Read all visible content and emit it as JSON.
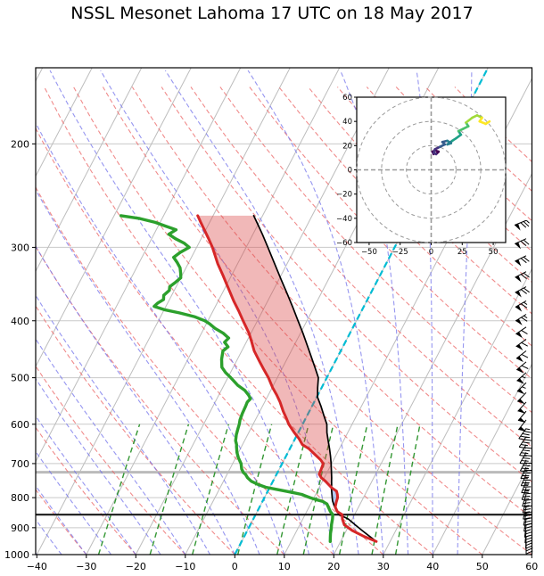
{
  "figure_title": "NSSL Mesonet Lahoma 17 UTC on 18 May 2017",
  "colors": {
    "temperature": "#d62728",
    "dewpoint": "#2ca02c",
    "parcel": "#000000",
    "cape_fill": "rgba(219,68,68,0.38)",
    "cin_fill": "rgba(120,160,235,0.55)",
    "isotherm": "#bdbdbd",
    "pressure_grid": "#c9c9c9",
    "dry_adiabat": "rgba(235,100,100,0.75)",
    "moist_adiabat": "rgba(115,115,235,0.75)",
    "mixing_ratio": "rgba(40,145,40,0.95)",
    "freezing_line": "#00bcd4",
    "lcl_line": "#1a1a1a",
    "aux_line": "#bbbbbb",
    "barb": "#000000",
    "hodo_grid": "#999999"
  },
  "chart_data": {
    "type": "skewt-log-p",
    "title": "NSSL Mesonet Lahoma 17 UTC on 18 May 2017",
    "x_tick_labels": [
      "−40",
      "−30",
      "−20",
      "−10",
      "0",
      "10",
      "20",
      "30",
      "40",
      "50",
      "60"
    ],
    "x_tick_values": [
      -40,
      -30,
      -20,
      -10,
      0,
      10,
      20,
      30,
      40,
      50,
      60
    ],
    "y_tick_labels": [
      "200",
      "300",
      "400",
      "500",
      "600",
      "700",
      "800",
      "900",
      "1000"
    ],
    "y_tick_values": [
      200,
      300,
      400,
      500,
      600,
      700,
      800,
      900,
      1000
    ],
    "pressure_limits_hpa": [
      1000,
      150
    ],
    "temperature_limits_c": [
      -40,
      60
    ],
    "lcl_pressure_hpa": 855,
    "aux_level_pressure_hpa": 724,
    "lfc_pressure_hpa": 768,
    "freezing_highlight_c": 0,
    "background": {
      "isotherm_step_c": 10,
      "dry_adiabat_thetas_c": [
        -30,
        -20,
        -10,
        0,
        10,
        20,
        30,
        40,
        50,
        60,
        70,
        80,
        90,
        100,
        110,
        120,
        130,
        140,
        150,
        160,
        170,
        180
      ],
      "moist_adiabat_starts_c": [
        -40,
        -35,
        -30,
        -25,
        -20,
        -15,
        -10,
        -5,
        0,
        5,
        10,
        15,
        20,
        25,
        30,
        35,
        40,
        45
      ],
      "mixing_ratios_g_kg": [
        0.4,
        1,
        2,
        4,
        7,
        10,
        16,
        24,
        32
      ],
      "mixing_ratio_max_pressure_hpa": 600
    },
    "temperature_profile": {
      "points": [
        [
          950,
          27.2
        ],
        [
          930,
          24.0
        ],
        [
          910,
          21.2
        ],
        [
          890,
          19.0
        ],
        [
          870,
          18.0
        ],
        [
          855,
          17.5
        ],
        [
          845,
          16.2
        ],
        [
          830,
          15.3
        ],
        [
          815,
          15.0
        ],
        [
          800,
          14.8
        ],
        [
          790,
          14.4
        ],
        [
          780,
          13.9
        ],
        [
          770,
          12.6
        ],
        [
          760,
          11.6
        ],
        [
          750,
          10.6
        ],
        [
          740,
          9.4
        ],
        [
          730,
          8.6
        ],
        [
          718,
          8.5
        ],
        [
          708,
          8.4
        ],
        [
          700,
          8.3
        ],
        [
          690,
          7.4
        ],
        [
          675,
          5.6
        ],
        [
          660,
          3.8
        ],
        [
          650,
          2.1
        ],
        [
          635,
          0.8
        ],
        [
          620,
          -0.8
        ],
        [
          600,
          -2.8
        ],
        [
          585,
          -4.0
        ],
        [
          570,
          -5.3
        ],
        [
          550,
          -6.9
        ],
        [
          535,
          -8.3
        ],
        [
          520,
          -9.9
        ],
        [
          500,
          -11.8
        ],
        [
          485,
          -13.5
        ],
        [
          470,
          -15.2
        ],
        [
          450,
          -17.5
        ],
        [
          435,
          -18.9
        ],
        [
          420,
          -20.4
        ],
        [
          400,
          -22.9
        ],
        [
          385,
          -24.8
        ],
        [
          370,
          -26.9
        ],
        [
          350,
          -29.6
        ],
        [
          335,
          -31.7
        ],
        [
          320,
          -34.0
        ],
        [
          300,
          -36.8
        ],
        [
          290,
          -38.5
        ],
        [
          280,
          -40.3
        ],
        [
          272,
          -41.8
        ],
        [
          265,
          -43.1
        ]
      ]
    },
    "dewpoint_profile": {
      "points": [
        [
          950,
          17.9
        ],
        [
          935,
          17.5
        ],
        [
          920,
          17.1
        ],
        [
          905,
          16.8
        ],
        [
          890,
          16.4
        ],
        [
          870,
          16.0
        ],
        [
          855,
          15.6
        ],
        [
          845,
          14.8
        ],
        [
          830,
          13.9
        ],
        [
          820,
          13.3
        ],
        [
          812,
          12.2
        ],
        [
          806,
          10.6
        ],
        [
          800,
          9.2
        ],
        [
          794,
          8.0
        ],
        [
          790,
          7.2
        ],
        [
          784,
          5.2
        ],
        [
          780,
          3.7
        ],
        [
          774,
          1.4
        ],
        [
          768,
          -0.8
        ],
        [
          760,
          -2.6
        ],
        [
          750,
          -4.4
        ],
        [
          740,
          -5.5
        ],
        [
          730,
          -6.3
        ],
        [
          725,
          -6.9
        ],
        [
          715,
          -7.6
        ],
        [
          700,
          -8.3
        ],
        [
          685,
          -9.4
        ],
        [
          670,
          -10.3
        ],
        [
          655,
          -11.0
        ],
        [
          650,
          -11.2
        ],
        [
          640,
          -11.8
        ],
        [
          625,
          -12.3
        ],
        [
          610,
          -12.6
        ],
        [
          600,
          -12.8
        ],
        [
          590,
          -13.1
        ],
        [
          575,
          -13.3
        ],
        [
          560,
          -13.4
        ],
        [
          550,
          -13.5
        ],
        [
          543,
          -13.2
        ],
        [
          535,
          -14.0
        ],
        [
          525,
          -15.3
        ],
        [
          515,
          -17.2
        ],
        [
          500,
          -19.4
        ],
        [
          490,
          -21.0
        ],
        [
          480,
          -22.3
        ],
        [
          465,
          -23.2
        ],
        [
          450,
          -23.8
        ],
        [
          443,
          -23.2
        ],
        [
          435,
          -24.4
        ],
        [
          428,
          -24.0
        ],
        [
          420,
          -25.6
        ],
        [
          412,
          -27.8
        ],
        [
          405,
          -29.3
        ],
        [
          400,
          -30.6
        ],
        [
          394,
          -33.0
        ],
        [
          388,
          -36.5
        ],
        [
          383,
          -40.0
        ],
        [
          378,
          -42.4
        ],
        [
          373,
          -42.0
        ],
        [
          368,
          -41.2
        ],
        [
          362,
          -41.6
        ],
        [
          355,
          -41.0
        ],
        [
          350,
          -41.3
        ],
        [
          344,
          -40.6
        ],
        [
          338,
          -40.0
        ],
        [
          332,
          -40.5
        ],
        [
          325,
          -41.2
        ],
        [
          318,
          -42.4
        ],
        [
          312,
          -43.6
        ],
        [
          306,
          -42.8
        ],
        [
          300,
          -41.5
        ],
        [
          295,
          -43.0
        ],
        [
          290,
          -45.2
        ],
        [
          285,
          -47.0
        ],
        [
          280,
          -46.0
        ],
        [
          276,
          -48.5
        ],
        [
          272,
          -51.0
        ],
        [
          268,
          -54.5
        ],
        [
          265,
          -58.6
        ]
      ]
    },
    "parcel_profile": {
      "points": [
        [
          950,
          27.2
        ],
        [
          930,
          25.2
        ],
        [
          910,
          23.2
        ],
        [
          890,
          21.2
        ],
        [
          870,
          19.2
        ],
        [
          855,
          16.9
        ],
        [
          840,
          15.8
        ],
        [
          825,
          14.9
        ],
        [
          810,
          14.1
        ],
        [
          800,
          13.7
        ],
        [
          790,
          13.3
        ],
        [
          780,
          12.9
        ],
        [
          770,
          12.5
        ],
        [
          760,
          12.2
        ],
        [
          752,
          11.9
        ],
        [
          740,
          11.5
        ],
        [
          720,
          10.7
        ],
        [
          700,
          9.9
        ],
        [
          680,
          9.0
        ],
        [
          660,
          8.0
        ],
        [
          640,
          6.9
        ],
        [
          620,
          5.8
        ],
        [
          600,
          4.9
        ],
        [
          580,
          3.4
        ],
        [
          560,
          1.9
        ],
        [
          540,
          0.2
        ],
        [
          520,
          -0.8
        ],
        [
          500,
          -1.7
        ],
        [
          480,
          -3.5
        ],
        [
          460,
          -5.4
        ],
        [
          440,
          -7.4
        ],
        [
          420,
          -9.5
        ],
        [
          400,
          -11.8
        ],
        [
          380,
          -14.2
        ],
        [
          360,
          -16.8
        ],
        [
          340,
          -19.6
        ],
        [
          320,
          -22.5
        ],
        [
          300,
          -25.6
        ],
        [
          285,
          -28.1
        ],
        [
          275,
          -29.9
        ],
        [
          265,
          -31.8
        ]
      ]
    },
    "wind_barbs": [
      [
        950,
        180,
        20
      ],
      [
        930,
        182,
        22
      ],
      [
        910,
        185,
        25
      ],
      [
        890,
        187,
        25
      ],
      [
        870,
        190,
        28
      ],
      [
        850,
        192,
        30
      ],
      [
        830,
        194,
        30
      ],
      [
        810,
        196,
        32
      ],
      [
        790,
        198,
        32
      ],
      [
        770,
        200,
        35
      ],
      [
        750,
        202,
        35
      ],
      [
        730,
        204,
        35
      ],
      [
        710,
        206,
        38
      ],
      [
        690,
        208,
        40
      ],
      [
        670,
        210,
        40
      ],
      [
        650,
        212,
        42
      ],
      [
        630,
        214,
        45
      ],
      [
        610,
        216,
        45
      ],
      [
        590,
        218,
        48
      ],
      [
        570,
        220,
        50
      ],
      [
        550,
        222,
        50
      ],
      [
        530,
        224,
        52
      ],
      [
        510,
        226,
        55
      ],
      [
        490,
        228,
        55
      ],
      [
        470,
        230,
        58
      ],
      [
        450,
        232,
        60
      ],
      [
        430,
        234,
        60
      ],
      [
        410,
        236,
        62
      ],
      [
        390,
        238,
        65
      ],
      [
        370,
        240,
        65
      ],
      [
        350,
        242,
        68
      ],
      [
        330,
        243,
        70
      ],
      [
        310,
        244,
        70
      ],
      [
        290,
        246,
        72
      ],
      [
        270,
        248,
        75
      ]
    ],
    "hodograph": {
      "x_tick_labels": [
        "−50",
        "−25",
        "0",
        "25",
        "50"
      ],
      "x_tick_values": [
        -50,
        -25,
        0,
        25,
        50
      ],
      "y_tick_labels": [
        "−60",
        "−40",
        "−20",
        "0",
        "20",
        "40",
        "60"
      ],
      "y_tick_values": [
        -60,
        -40,
        -20,
        0,
        20,
        40,
        60
      ],
      "axis_limits": [
        -60,
        60
      ],
      "ring_radii": [
        20,
        40,
        60
      ],
      "trace_u": [
        2,
        1,
        3,
        6,
        4,
        2,
        3,
        7,
        11,
        9,
        13,
        16,
        13,
        17,
        20,
        24,
        22,
        26,
        30,
        28,
        33,
        37,
        41,
        39,
        44,
        47
      ],
      "trace_v": [
        13,
        15,
        16,
        15,
        13,
        14,
        17,
        19,
        21,
        23,
        24,
        22,
        21,
        24,
        26,
        29,
        32,
        34,
        36,
        39,
        43,
        45,
        43,
        40,
        38,
        40
      ],
      "trace_colormap": [
        "#440154",
        "#46327e",
        "#365c8d",
        "#277f8e",
        "#1fa187",
        "#4ac16d",
        "#a0da39",
        "#fde725"
      ]
    }
  }
}
